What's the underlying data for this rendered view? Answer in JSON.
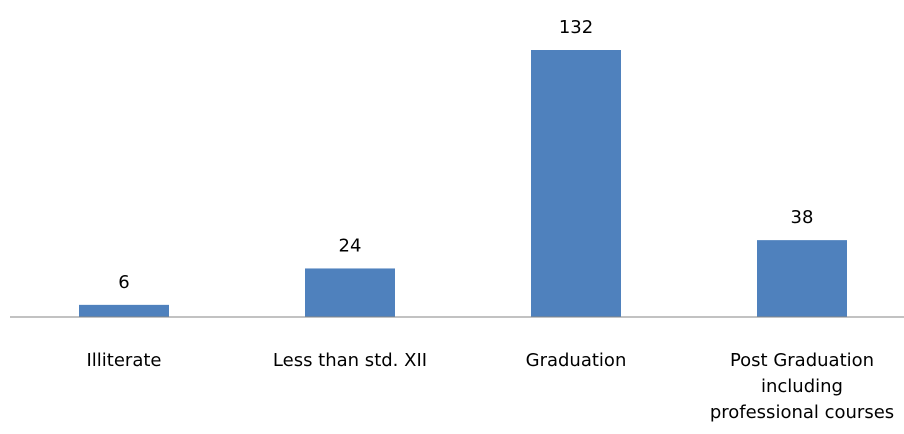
{
  "chart_data": {
    "type": "bar",
    "categories": [
      [
        "Illiterate"
      ],
      [
        "Less than std. XII"
      ],
      [
        "Graduation"
      ],
      [
        "Post Graduation",
        "including",
        "professional courses"
      ]
    ],
    "values": [
      6,
      24,
      132,
      38
    ],
    "data_labels": [
      "6",
      "24",
      "132",
      "38"
    ],
    "ylim": [
      0,
      132
    ],
    "grid": false,
    "legend": "none",
    "bar_color": "#4F81BD",
    "axis_color": "#868686"
  }
}
